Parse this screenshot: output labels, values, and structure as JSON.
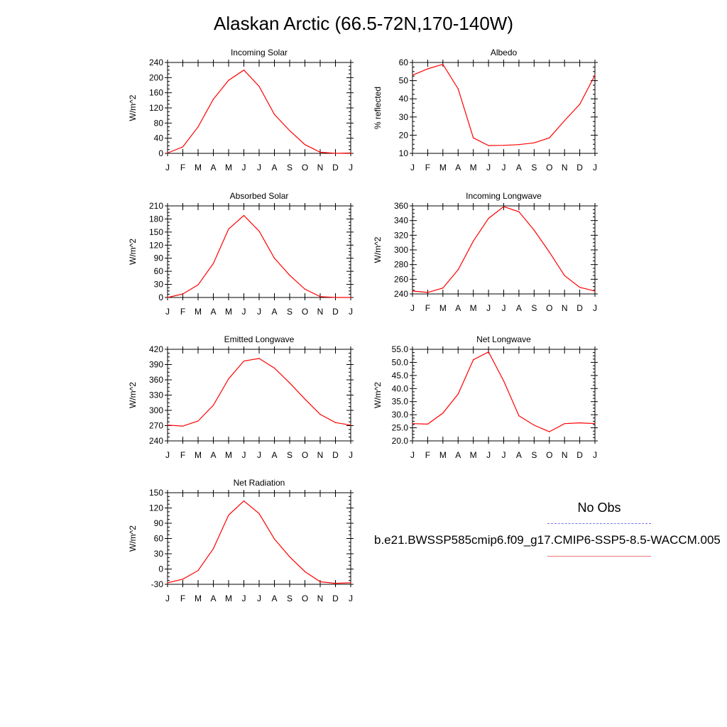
{
  "title": "Alaskan Arctic (66.5-72N,170-140W)",
  "colors": {
    "model_line": "#ff0000",
    "obs_line": "#7777ee",
    "axis": "#000000"
  },
  "legend": {
    "obs_label": "No Obs",
    "case_label": "b.e21.BWSSP585cmip6.f09_g17.CMIP6-SSP5-8.5-WACCM.005"
  },
  "chart_data": [
    {
      "type": "line",
      "title": "Incoming Solar",
      "ylabel": "W/m^2",
      "x": [
        "J",
        "F",
        "M",
        "A",
        "M",
        "J",
        "J",
        "A",
        "S",
        "O",
        "N",
        "D",
        "J"
      ],
      "ylim": [
        0,
        240
      ],
      "yticks": [
        "0",
        "40",
        "80",
        "120",
        "160",
        "200",
        "240"
      ],
      "series": [
        {
          "values": [
            1,
            17,
            70,
            143,
            193,
            220,
            177,
            103,
            60,
            23,
            3,
            0,
            1
          ]
        }
      ]
    },
    {
      "type": "line",
      "title": "Albedo",
      "ylabel": "% reflected",
      "x": [
        "J",
        "F",
        "M",
        "A",
        "M",
        "J",
        "J",
        "A",
        "S",
        "O",
        "N",
        "D",
        "J"
      ],
      "ylim": [
        10,
        60
      ],
      "yticks": [
        "10",
        "20",
        "30",
        "40",
        "50",
        "60"
      ],
      "series": [
        {
          "values": [
            53,
            56.5,
            59,
            45.5,
            18.5,
            14.3,
            14.4,
            14.8,
            15.8,
            18.5,
            28,
            37,
            53
          ]
        }
      ]
    },
    {
      "type": "line",
      "title": "Absorbed Solar",
      "ylabel": "W/m^2",
      "x": [
        "J",
        "F",
        "M",
        "A",
        "M",
        "J",
        "J",
        "A",
        "S",
        "O",
        "N",
        "D",
        "J"
      ],
      "ylim": [
        0,
        210
      ],
      "yticks": [
        "0",
        "30",
        "60",
        "90",
        "120",
        "150",
        "180",
        "210"
      ],
      "series": [
        {
          "values": [
            0,
            8,
            29,
            78,
            157,
            188,
            152,
            90,
            51,
            19,
            2,
            0,
            0
          ]
        }
      ]
    },
    {
      "type": "line",
      "title": "Incoming Longwave",
      "ylabel": "W/m^2",
      "x": [
        "J",
        "F",
        "M",
        "A",
        "M",
        "J",
        "J",
        "A",
        "S",
        "O",
        "N",
        "D",
        "J"
      ],
      "ylim": [
        240,
        360
      ],
      "yticks": [
        "240",
        "260",
        "280",
        "300",
        "320",
        "340",
        "360"
      ],
      "series": [
        {
          "values": [
            244,
            242,
            248,
            273,
            312,
            343,
            359,
            352,
            327,
            297,
            265,
            249,
            244
          ]
        }
      ]
    },
    {
      "type": "line",
      "title": "Emitted Longwave",
      "ylabel": "W/m^2",
      "x": [
        "J",
        "F",
        "M",
        "A",
        "M",
        "J",
        "J",
        "A",
        "S",
        "O",
        "N",
        "D",
        "J"
      ],
      "ylim": [
        240,
        420
      ],
      "yticks": [
        "240",
        "270",
        "300",
        "330",
        "360",
        "390",
        "420"
      ],
      "series": [
        {
          "values": [
            271,
            269,
            279,
            310,
            362,
            397,
            402,
            383,
            354,
            322,
            292,
            276,
            271
          ]
        }
      ]
    },
    {
      "type": "line",
      "title": "Net Longwave",
      "ylabel": "W/m^2",
      "x": [
        "J",
        "F",
        "M",
        "A",
        "M",
        "J",
        "J",
        "A",
        "S",
        "O",
        "N",
        "D",
        "J"
      ],
      "ylim": [
        20,
        55
      ],
      "yticks": [
        "20.0",
        "25.0",
        "30.0",
        "35.0",
        "40.0",
        "45.0",
        "50.0",
        "55.0"
      ],
      "series": [
        {
          "values": [
            26.6,
            26.4,
            30.6,
            37.9,
            51,
            54,
            42.9,
            29.6,
            26,
            23.5,
            26.6,
            26.9,
            26.6
          ]
        }
      ]
    },
    {
      "type": "line",
      "title": "Net Radiation",
      "ylabel": "W/m^2",
      "x": [
        "J",
        "F",
        "M",
        "A",
        "M",
        "J",
        "J",
        "A",
        "S",
        "O",
        "N",
        "D",
        "J"
      ],
      "ylim": [
        -30,
        150
      ],
      "yticks": [
        "-30",
        "0",
        "30",
        "60",
        "90",
        "120",
        "150"
      ],
      "series": [
        {
          "values": [
            -27,
            -20,
            -3,
            40,
            106,
            134,
            109,
            59,
            24,
            -5,
            -25,
            -28,
            -27
          ]
        }
      ]
    }
  ]
}
